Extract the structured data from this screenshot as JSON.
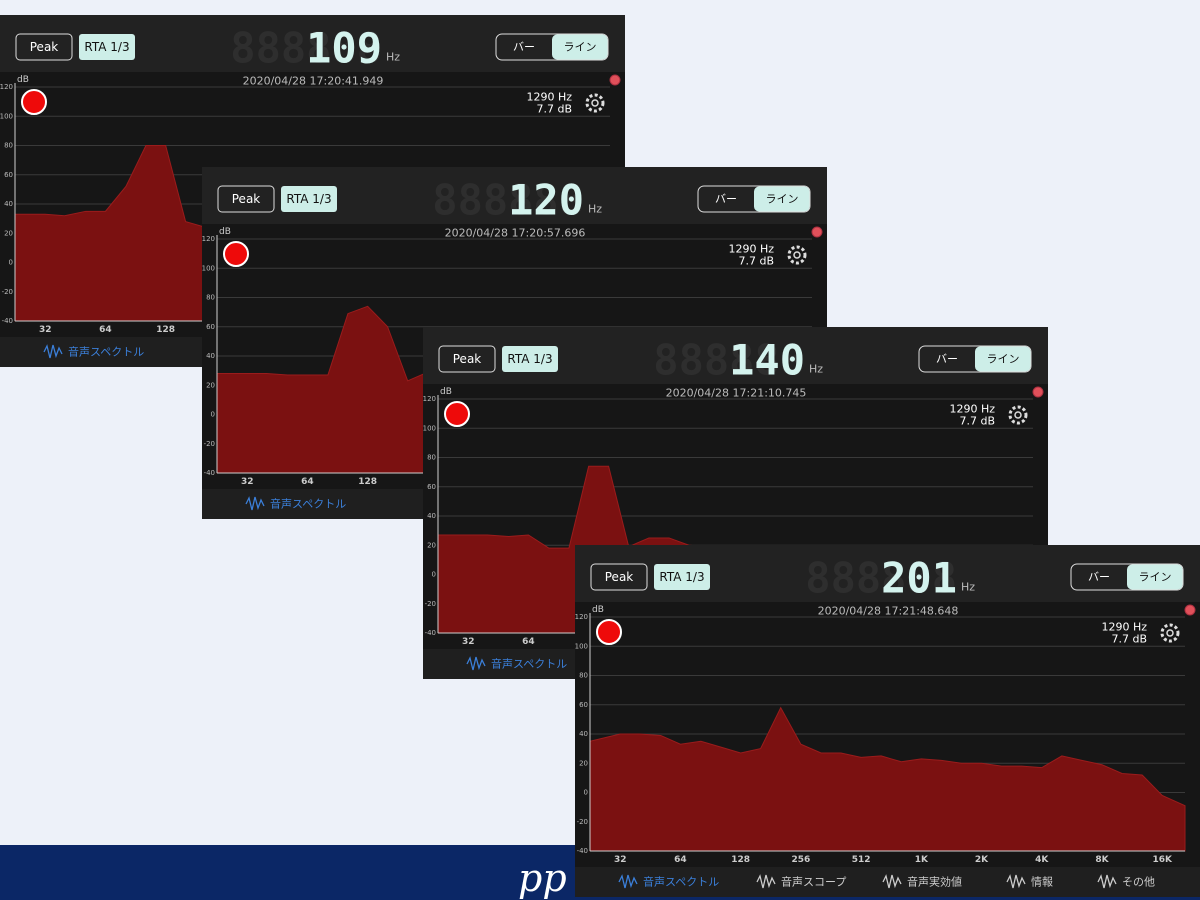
{
  "banner": {
    "text": "pp"
  },
  "panels": [
    {
      "buttons": {
        "peak": "Peak",
        "rta": "RTA 1/3"
      },
      "display": {
        "ghost": "888888",
        "value": "109",
        "unit": "Hz"
      },
      "toggle": [
        "バー",
        "ライン"
      ],
      "timestamp": "2020/04/28 17:20:41.949",
      "readout": {
        "frequency": "1290 Hz",
        "level": "7.7 dB"
      },
      "chart": {
        "type": "area",
        "y_label": "dB",
        "log_x": true,
        "color": "#7b1111",
        "grid": true,
        "x": [
          22.6,
          32,
          40,
          51,
          64,
          81,
          102,
          128,
          161,
          203
        ],
        "values": [
          33,
          33,
          32,
          35,
          35,
          52,
          80,
          80,
          28,
          24
        ],
        "xlim": [
          22.6,
          21300
        ],
        "ylim": [
          -40,
          120
        ],
        "yticks": [
          120,
          100,
          80,
          60,
          40,
          20,
          0,
          -20,
          -40
        ],
        "xticks": [
          32,
          64,
          128
        ]
      },
      "tabs": [
        "音声スペクトル"
      ]
    },
    {
      "buttons": {
        "peak": "Peak",
        "rta": "RTA 1/3"
      },
      "display": {
        "ghost": "888888",
        "value": "120",
        "unit": "Hz"
      },
      "toggle": [
        "バー",
        "ライン"
      ],
      "timestamp": "2020/04/28 17:20:57.696",
      "readout": {
        "frequency": "1290 Hz",
        "level": "7.7 dB"
      },
      "chart": {
        "type": "area",
        "y_label": "dB",
        "log_x": true,
        "color": "#7b1111",
        "grid": true,
        "x": [
          22.6,
          32,
          40,
          51,
          64,
          81,
          102,
          128,
          161,
          203,
          256
        ],
        "values": [
          28,
          28,
          28,
          27,
          27,
          27,
          69,
          74,
          60,
          23,
          29
        ],
        "xlim": [
          22.6,
          21300
        ],
        "ylim": [
          -40,
          120
        ],
        "yticks": [
          120,
          100,
          80,
          60,
          40,
          20,
          0,
          -20,
          -40
        ],
        "xticks": [
          32,
          64,
          128
        ]
      },
      "tabs": [
        "音声スペクトル"
      ]
    },
    {
      "buttons": {
        "peak": "Peak",
        "rta": "RTA 1/3"
      },
      "display": {
        "ghost": "888888",
        "value": "140",
        "unit": "Hz"
      },
      "toggle": [
        "バー",
        "ライン"
      ],
      "timestamp": "2020/04/28 17:21:10.745",
      "readout": {
        "frequency": "1290 Hz",
        "level": "7.7 dB"
      },
      "chart": {
        "type": "area",
        "y_label": "dB",
        "log_x": true,
        "color": "#7b1111",
        "grid": true,
        "x": [
          22.6,
          32,
          40,
          51,
          64,
          81,
          102,
          128,
          161,
          203,
          256,
          323,
          406,
          512
        ],
        "values": [
          27,
          27,
          27,
          26,
          27,
          18,
          18,
          74,
          74,
          19,
          25,
          25,
          20,
          19
        ],
        "xlim": [
          22.6,
          21300
        ],
        "ylim": [
          -40,
          120
        ],
        "yticks": [
          120,
          100,
          80,
          60,
          40,
          20,
          0,
          -20,
          -40
        ],
        "xticks": [
          32,
          64
        ]
      },
      "tabs": [
        "音声スペクトル"
      ]
    },
    {
      "buttons": {
        "peak": "Peak",
        "rta": "RTA 1/3"
      },
      "display": {
        "ghost": "888888",
        "value": "201",
        "unit": "Hz"
      },
      "toggle": [
        "バー",
        "ライン"
      ],
      "timestamp": "2020/04/28 17:21:48.648",
      "readout": {
        "frequency": "1290 Hz",
        "level": "7.7 dB"
      },
      "chart": {
        "type": "area",
        "y_label": "dB",
        "log_x": true,
        "color": "#7b1111",
        "grid": true,
        "x": [
          22.6,
          32,
          40,
          51,
          64,
          81,
          102,
          128,
          161,
          203,
          256,
          323,
          406,
          512,
          645,
          813,
          1024,
          1290,
          1625,
          2048,
          2580,
          3251,
          4096,
          5161,
          6502,
          8192,
          10321,
          13004,
          16384,
          21300
        ],
        "values": [
          35,
          40,
          40,
          39,
          33,
          35,
          31,
          27,
          30,
          58,
          33,
          27,
          27,
          24,
          25,
          21,
          23,
          22,
          20,
          20,
          18,
          18,
          17,
          25,
          22,
          19,
          13,
          12,
          -2,
          -9
        ],
        "xlim": [
          22.6,
          21300
        ],
        "ylim": [
          -40,
          120
        ],
        "yticks": [
          120,
          100,
          80,
          60,
          40,
          20,
          0,
          -20,
          -40
        ],
        "xticks": [
          32,
          64,
          128,
          256,
          512,
          {
            "value": 1024,
            "label": "1K"
          },
          {
            "value": 2048,
            "label": "2K"
          },
          {
            "value": 4096,
            "label": "4K"
          },
          {
            "value": 8192,
            "label": "8K"
          },
          {
            "value": 16384,
            "label": "16K"
          }
        ]
      },
      "tabs": [
        "音声スペクトル",
        "音声スコープ",
        "音声実効値",
        "情報",
        "その他"
      ]
    }
  ]
}
